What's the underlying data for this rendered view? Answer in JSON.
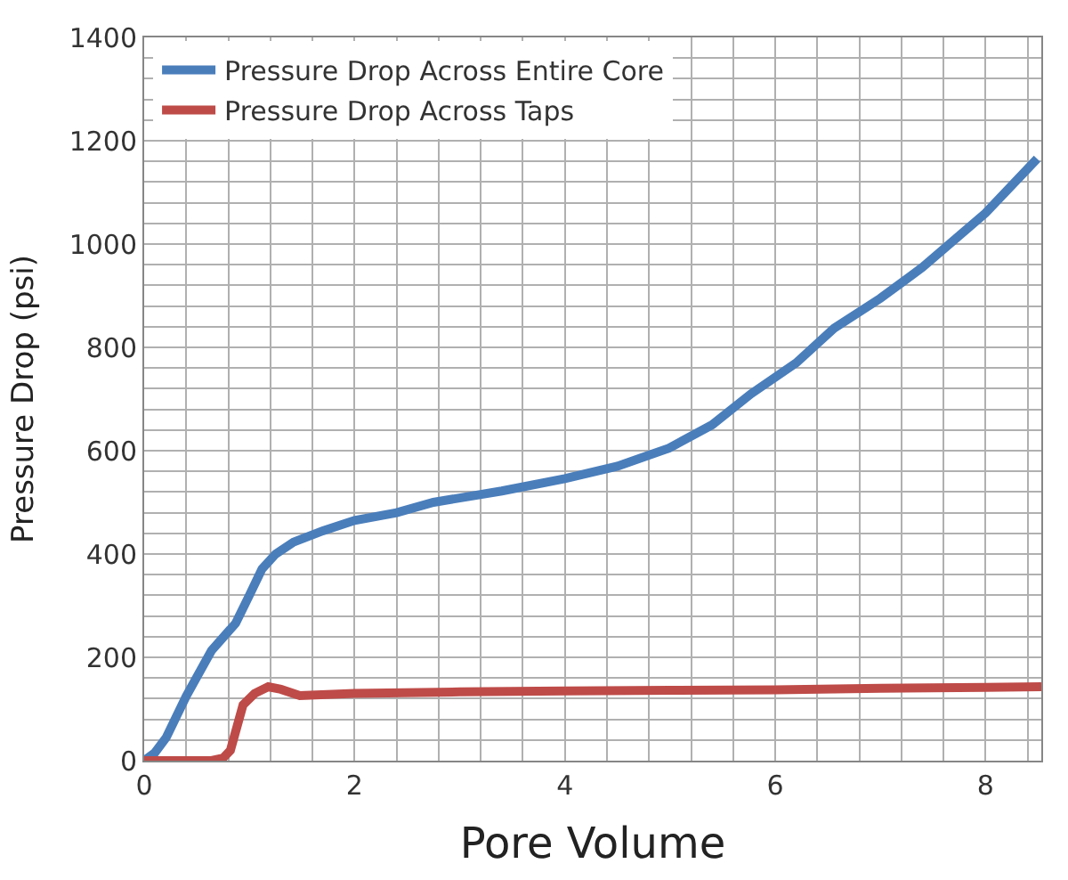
{
  "chart_data": {
    "type": "line",
    "xlabel": "Pore Volume",
    "ylabel": "Pressure Drop (psi)",
    "xlim": [
      0,
      8.53
    ],
    "ylim": [
      0,
      1400
    ],
    "xticks": [
      0,
      {
        "value": 0.4,
        "label": null
      },
      {
        "value": 0.8,
        "label": null
      },
      {
        "value": 1.2,
        "label": null
      },
      {
        "value": 1.6,
        "label": null
      },
      2,
      {
        "value": 2.4,
        "label": null
      },
      {
        "value": 2.8,
        "label": null
      },
      {
        "value": 3.2,
        "label": null
      },
      {
        "value": 3.6,
        "label": null
      },
      4,
      {
        "value": 4.4,
        "label": null
      },
      {
        "value": 4.8,
        "label": null
      },
      {
        "value": 5.2,
        "label": null
      },
      {
        "value": 5.6,
        "label": null
      },
      6,
      {
        "value": 6.4,
        "label": null
      },
      {
        "value": 6.8,
        "label": null
      },
      {
        "value": 7.2,
        "label": null
      },
      {
        "value": 7.6,
        "label": null
      },
      8,
      {
        "value": 8.4,
        "label": null
      }
    ],
    "yticks": [
      0,
      {
        "value": 40,
        "label": null
      },
      {
        "value": 80,
        "label": null
      },
      {
        "value": 120,
        "label": null
      },
      {
        "value": 160,
        "label": null
      },
      200,
      {
        "value": 240,
        "label": null
      },
      {
        "value": 280,
        "label": null
      },
      {
        "value": 320,
        "label": null
      },
      {
        "value": 360,
        "label": null
      },
      400,
      {
        "value": 440,
        "label": null
      },
      {
        "value": 480,
        "label": null
      },
      {
        "value": 520,
        "label": null
      },
      {
        "value": 560,
        "label": null
      },
      600,
      {
        "value": 640,
        "label": null
      },
      {
        "value": 680,
        "label": null
      },
      {
        "value": 720,
        "label": null
      },
      {
        "value": 760,
        "label": null
      },
      800,
      {
        "value": 840,
        "label": null
      },
      {
        "value": 880,
        "label": null
      },
      {
        "value": 920,
        "label": null
      },
      {
        "value": 960,
        "label": null
      },
      1000,
      {
        "value": 1040,
        "label": null
      },
      {
        "value": 1080,
        "label": null
      },
      {
        "value": 1120,
        "label": null
      },
      {
        "value": 1160,
        "label": null
      },
      1200,
      {
        "value": 1240,
        "label": null
      },
      {
        "value": 1280,
        "label": null
      },
      {
        "value": 1320,
        "label": null
      },
      {
        "value": 1360,
        "label": null
      },
      1400
    ],
    "grid": true,
    "legend": "top left",
    "series": [
      {
        "name": "Pressure Drop Across Entire Core",
        "color": "#4a7ebb",
        "x": [
          0,
          0.1,
          0.21,
          0.4,
          0.64,
          0.87,
          1.0,
          1.12,
          1.25,
          1.42,
          1.7,
          2.0,
          2.4,
          2.75,
          3.4,
          4.0,
          4.5,
          4.99,
          5.4,
          5.77,
          6.2,
          6.56,
          7.0,
          7.4,
          8.0,
          8.49
        ],
        "values": [
          0,
          15,
          45,
          125,
          213,
          266,
          320,
          371,
          400,
          423,
          445,
          465,
          480,
          500,
          522,
          546,
          570,
          605,
          650,
          710,
          770,
          837,
          895,
          955,
          1060,
          1165
        ]
      },
      {
        "name": "Pressure Drop Across Taps",
        "color": "#be4b48",
        "x": [
          0,
          0.3,
          0.64,
          0.75,
          0.82,
          0.94,
          1.05,
          1.18,
          1.3,
          1.48,
          2.0,
          3.0,
          4.0,
          5.0,
          6.0,
          7.0,
          8.0,
          8.53
        ],
        "values": [
          0,
          0,
          0,
          5,
          20,
          108,
          130,
          143,
          138,
          126,
          130,
          133,
          135,
          136,
          137,
          140,
          142,
          143
        ]
      }
    ]
  }
}
